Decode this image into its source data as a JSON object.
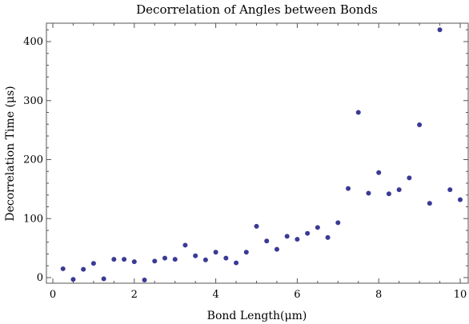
{
  "chart_data": {
    "type": "scatter",
    "title": "Decorrelation of Angles between Bonds",
    "xlabel": "Bond Length(μm)",
    "ylabel": "Decorrelation Time (μs)",
    "xlim": [
      0,
      10.25
    ],
    "ylim": [
      -3,
      433
    ],
    "xticks": [
      0,
      2,
      4,
      6,
      8,
      10
    ],
    "yticks": [
      0,
      100,
      200,
      300,
      400
    ],
    "grid": false,
    "color": "#3a3a96",
    "series": [
      {
        "x": [
          0.25,
          0.5,
          0.75,
          1.0,
          1.25,
          1.5,
          1.75,
          2.0,
          2.25,
          2.5,
          2.75,
          3.0,
          3.25,
          3.5,
          3.75,
          4.0,
          4.25,
          4.5,
          4.75,
          5.0,
          5.25,
          5.5,
          5.75,
          6.0,
          6.25,
          6.5,
          6.75,
          7.0,
          7.25,
          7.5,
          7.75,
          8.0,
          8.25,
          8.5,
          8.75,
          9.0,
          9.25,
          9.5,
          9.75,
          10.0
        ],
        "y": [
          15,
          -3,
          14,
          24,
          -2,
          31,
          31,
          27,
          -4,
          28,
          33,
          31,
          55,
          37,
          30,
          43,
          33,
          25,
          43,
          87,
          62,
          48,
          70,
          65,
          75,
          85,
          68,
          93,
          151,
          280,
          143,
          178,
          142,
          149,
          169,
          259,
          126,
          420,
          149,
          132
        ]
      }
    ]
  }
}
